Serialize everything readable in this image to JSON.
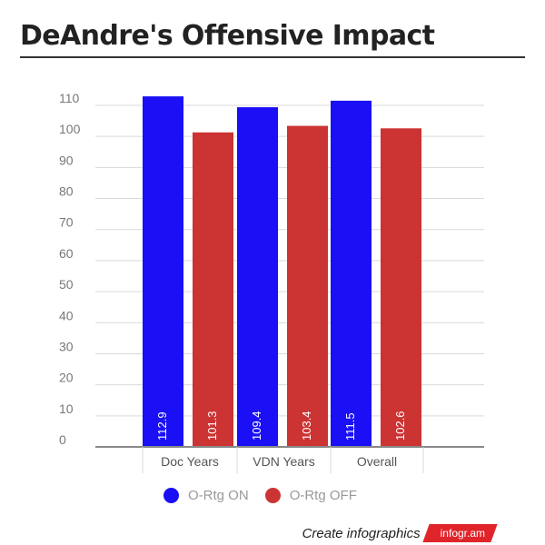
{
  "colors": {
    "on": "#1a0ff5",
    "off": "#cc3333",
    "grid": "#d9d9d9",
    "axis": "#888888",
    "tick_text": "#777777",
    "brand": "#e0252a"
  },
  "chart_data": {
    "type": "bar",
    "title": "DeAndre's Offensive Impact",
    "categories": [
      "Doc Years",
      "VDN Years",
      "Overall"
    ],
    "series": [
      {
        "name": "O-Rtg ON",
        "values": [
          112.9,
          109.4,
          111.5
        ],
        "labels": [
          "112.9",
          "109.4",
          "111.5"
        ]
      },
      {
        "name": "O-Rtg OFF",
        "values": [
          101.3,
          103.4,
          102.6
        ],
        "labels": [
          "101.3",
          "103.4",
          "102.6"
        ]
      }
    ],
    "ylim": [
      0,
      110
    ],
    "y_ticks": [
      "0",
      "10",
      "20",
      "30",
      "40",
      "50",
      "60",
      "70",
      "80",
      "90",
      "100",
      "110"
    ],
    "grid": true,
    "legend_position": "bottom"
  },
  "footer": {
    "text": "Create infographics",
    "brand": "infogr.am"
  }
}
